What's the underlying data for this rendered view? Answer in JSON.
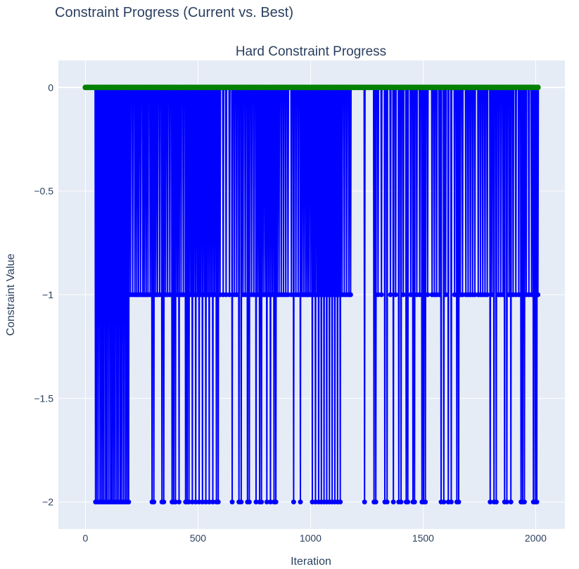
{
  "figure_title": "Constraint Progress (Current vs. Best)",
  "chart_data": {
    "type": "line",
    "title": "Hard Constraint Progress",
    "xlabel": "Iteration",
    "ylabel": "Constraint Value",
    "xlim": [
      -120,
      2130
    ],
    "ylim": [
      -2.13,
      0.13
    ],
    "grid": true,
    "x_ticks": [
      0,
      500,
      1000,
      1500,
      2000
    ],
    "x_tick_labels": [
      "0",
      "500",
      "1000",
      "1500",
      "2000"
    ],
    "y_ticks": [
      0,
      -0.5,
      -1,
      -1.5,
      -2
    ],
    "y_tick_labels": [
      "0",
      "−0.5",
      "−1",
      "−1.5",
      "−2"
    ],
    "x_end": 2010,
    "colors": {
      "current": "#0000ff",
      "best": "#008000",
      "plot_bg": "#e5ecf6",
      "grid": "#ffffff"
    },
    "series": [
      {
        "role": "current",
        "note_values": "values between listed change points are 0",
        "dips": [
          [
            45,
            -2
          ],
          [
            52,
            -2
          ],
          [
            60,
            -2
          ],
          [
            68,
            -2
          ],
          [
            75,
            -2
          ],
          [
            82,
            -2
          ],
          [
            90,
            -2
          ],
          [
            96,
            -2
          ],
          [
            104,
            -2
          ],
          [
            112,
            -2
          ],
          [
            118,
            -2
          ],
          [
            125,
            -2
          ],
          [
            132,
            -2
          ],
          [
            140,
            -2
          ],
          [
            147,
            -2
          ],
          [
            155,
            -2
          ],
          [
            162,
            -2
          ],
          [
            170,
            -2
          ],
          [
            178,
            -2
          ],
          [
            185,
            -2
          ],
          [
            192,
            -2
          ],
          [
            200,
            -1
          ],
          [
            210,
            -1
          ],
          [
            220,
            -1
          ],
          [
            228,
            -1
          ],
          [
            236,
            -1
          ],
          [
            245,
            -1
          ],
          [
            255,
            -1
          ],
          [
            262,
            -1
          ],
          [
            270,
            -1
          ],
          [
            278,
            -1
          ],
          [
            288,
            -1
          ],
          [
            296,
            -2
          ],
          [
            304,
            -2
          ],
          [
            312,
            -1
          ],
          [
            320,
            -1
          ],
          [
            330,
            -1
          ],
          [
            340,
            -2
          ],
          [
            348,
            -2
          ],
          [
            356,
            -1
          ],
          [
            365,
            -1
          ],
          [
            375,
            -1
          ],
          [
            385,
            -2
          ],
          [
            392,
            -2
          ],
          [
            400,
            -2
          ],
          [
            408,
            -1
          ],
          [
            416,
            -2
          ],
          [
            425,
            -1
          ],
          [
            435,
            -1
          ],
          [
            445,
            -2
          ],
          [
            452,
            -2
          ],
          [
            460,
            -2
          ],
          [
            468,
            -1
          ],
          [
            475,
            -2
          ],
          [
            482,
            -1
          ],
          [
            490,
            -2
          ],
          [
            498,
            -1
          ],
          [
            505,
            -2
          ],
          [
            512,
            -1
          ],
          [
            520,
            -2
          ],
          [
            528,
            -1
          ],
          [
            535,
            -2
          ],
          [
            542,
            -1
          ],
          [
            550,
            -2
          ],
          [
            558,
            -1
          ],
          [
            566,
            -2
          ],
          [
            574,
            -1
          ],
          [
            582,
            -2
          ],
          [
            590,
            -2
          ],
          [
            598,
            -1
          ],
          [
            612,
            -1
          ],
          [
            625,
            -1
          ],
          [
            640,
            -1
          ],
          [
            652,
            -2
          ],
          [
            662,
            -1
          ],
          [
            672,
            -1
          ],
          [
            682,
            -2
          ],
          [
            692,
            -2
          ],
          [
            700,
            -1
          ],
          [
            710,
            -1
          ],
          [
            720,
            -2
          ],
          [
            728,
            -2
          ],
          [
            738,
            -1
          ],
          [
            748,
            -1
          ],
          [
            758,
            -2
          ],
          [
            766,
            -1
          ],
          [
            774,
            -2
          ],
          [
            782,
            -2
          ],
          [
            790,
            -1
          ],
          [
            798,
            -1
          ],
          [
            806,
            -2
          ],
          [
            814,
            -1
          ],
          [
            822,
            -2
          ],
          [
            830,
            -1
          ],
          [
            838,
            -2
          ],
          [
            846,
            -2
          ],
          [
            852,
            -1
          ],
          [
            860,
            -1
          ],
          [
            870,
            -1
          ],
          [
            880,
            -1
          ],
          [
            890,
            -1
          ],
          [
            900,
            -1
          ],
          [
            915,
            -1
          ],
          [
            925,
            -2
          ],
          [
            935,
            -1
          ],
          [
            945,
            -1
          ],
          [
            955,
            -2
          ],
          [
            962,
            -1
          ],
          [
            970,
            -1
          ],
          [
            978,
            -1
          ],
          [
            985,
            -1
          ],
          [
            992,
            -1
          ],
          [
            1000,
            -1
          ],
          [
            1008,
            -2
          ],
          [
            1015,
            -1
          ],
          [
            1022,
            -2
          ],
          [
            1030,
            -1
          ],
          [
            1036,
            -2
          ],
          [
            1042,
            -1
          ],
          [
            1048,
            -2
          ],
          [
            1054,
            -1
          ],
          [
            1060,
            -2
          ],
          [
            1066,
            -1
          ],
          [
            1072,
            -2
          ],
          [
            1078,
            -1
          ],
          [
            1084,
            -2
          ],
          [
            1090,
            -1
          ],
          [
            1096,
            -2
          ],
          [
            1102,
            -1
          ],
          [
            1108,
            -2
          ],
          [
            1114,
            -1
          ],
          [
            1120,
            -2
          ],
          [
            1126,
            -1
          ],
          [
            1132,
            -2
          ],
          [
            1140,
            -1
          ],
          [
            1150,
            -1
          ],
          [
            1160,
            -1
          ],
          [
            1170,
            -1
          ],
          [
            1178,
            -1
          ],
          [
            1240,
            -2
          ],
          [
            1282,
            -2
          ],
          [
            1290,
            -2
          ],
          [
            1300,
            -1
          ],
          [
            1315,
            -1
          ],
          [
            1330,
            -2
          ],
          [
            1340,
            -2
          ],
          [
            1355,
            -1
          ],
          [
            1368,
            -2
          ],
          [
            1378,
            -1
          ],
          [
            1392,
            -2
          ],
          [
            1402,
            -2
          ],
          [
            1412,
            -1
          ],
          [
            1425,
            -2
          ],
          [
            1432,
            -2
          ],
          [
            1445,
            -1
          ],
          [
            1455,
            -2
          ],
          [
            1462,
            -2
          ],
          [
            1472,
            -1
          ],
          [
            1485,
            -1
          ],
          [
            1495,
            -2
          ],
          [
            1502,
            -2
          ],
          [
            1510,
            -2
          ],
          [
            1520,
            -1
          ],
          [
            1540,
            -1
          ],
          [
            1550,
            -1
          ],
          [
            1560,
            -1
          ],
          [
            1572,
            -1
          ],
          [
            1580,
            -2
          ],
          [
            1592,
            -2
          ],
          [
            1600,
            -1
          ],
          [
            1612,
            -2
          ],
          [
            1625,
            -2
          ],
          [
            1640,
            -1
          ],
          [
            1650,
            -2
          ],
          [
            1658,
            -2
          ],
          [
            1665,
            -1
          ],
          [
            1675,
            -1
          ],
          [
            1690,
            -1
          ],
          [
            1700,
            -1
          ],
          [
            1710,
            -1
          ],
          [
            1720,
            -1
          ],
          [
            1730,
            -1
          ],
          [
            1745,
            -1
          ],
          [
            1755,
            -1
          ],
          [
            1765,
            -1
          ],
          [
            1775,
            -1
          ],
          [
            1785,
            -1
          ],
          [
            1798,
            -2
          ],
          [
            1806,
            -1
          ],
          [
            1815,
            -2
          ],
          [
            1825,
            -2
          ],
          [
            1835,
            -1
          ],
          [
            1845,
            -1
          ],
          [
            1855,
            -1
          ],
          [
            1862,
            -2
          ],
          [
            1872,
            -2
          ],
          [
            1882,
            -1
          ],
          [
            1890,
            -2
          ],
          [
            1900,
            -1
          ],
          [
            1912,
            -1
          ],
          [
            1925,
            -1
          ],
          [
            1935,
            -2
          ],
          [
            1942,
            -2
          ],
          [
            1950,
            -2
          ],
          [
            1958,
            -1
          ],
          [
            1970,
            -1
          ],
          [
            1982,
            -1
          ],
          [
            1990,
            -2
          ],
          [
            1998,
            -2
          ],
          [
            2005,
            -2
          ],
          [
            2010,
            -1
          ]
        ]
      },
      {
        "role": "best",
        "x": [
          0,
          2010
        ],
        "values": [
          0,
          0
        ]
      }
    ]
  }
}
